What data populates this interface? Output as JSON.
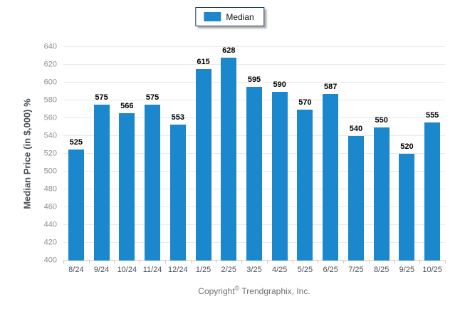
{
  "chart_data": {
    "type": "bar",
    "title": "",
    "categories": [
      "8/24",
      "9/24",
      "10/24",
      "11/24",
      "12/24",
      "1/25",
      "2/25",
      "3/25",
      "4/25",
      "5/25",
      "6/25",
      "7/25",
      "8/25",
      "9/25",
      "10/25"
    ],
    "series": [
      {
        "name": "Median",
        "values": [
          525,
          575,
          566,
          575,
          553,
          615,
          628,
          595,
          590,
          570,
          587,
          540,
          550,
          520,
          555
        ]
      }
    ],
    "xlabel": "",
    "ylabel": "Median Price (in $,000) %",
    "ylim": [
      400,
      640
    ],
    "ytick_step": 20,
    "yticks": [
      400,
      420,
      440,
      460,
      480,
      500,
      520,
      540,
      560,
      580,
      600,
      620,
      640
    ],
    "grid": "horizontal",
    "legend_position": "top-center",
    "value_labels": true,
    "bar_color": "#1b87cd"
  },
  "legend": {
    "items": [
      {
        "label": "Median",
        "color": "#1b87cd"
      }
    ]
  },
  "footer": {
    "copyright_prefix": "Copyright",
    "copyright_symbol": "©",
    "copyright_suffix": "Trendgraphix, Inc."
  },
  "colors": {
    "bar": "#1b87cd",
    "legend_border": "#17375e",
    "gridline": "#e9e9e9",
    "axis_line": "#cfcfcf",
    "y_tick_label": "#8b9196",
    "x_tick_label": "#49525b",
    "value_label": "#000000",
    "copyright": "#6f6f6f"
  }
}
